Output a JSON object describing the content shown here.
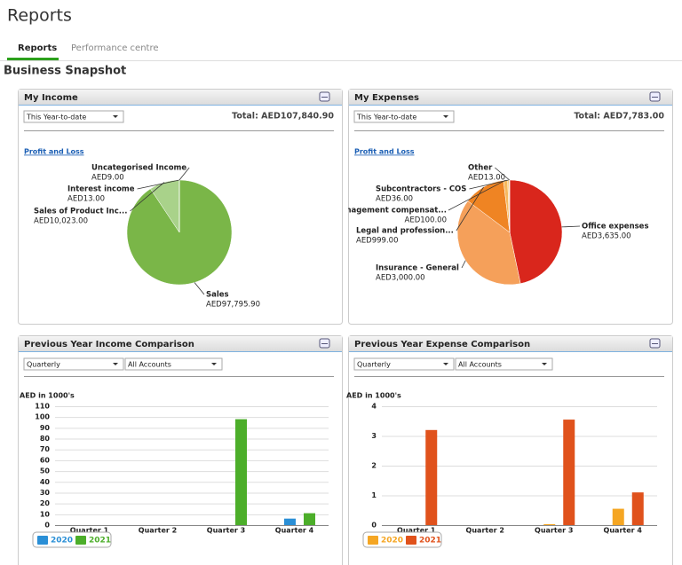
{
  "page": {
    "title": "Reports",
    "tabs": [
      "Reports",
      "Performance centre"
    ],
    "section": "Business Snapshot"
  },
  "panels": [
    {
      "title": "My Income",
      "period": "This Year-to-date",
      "total": "Total: AED107,840.90",
      "link": "Profit and Loss"
    },
    {
      "title": "My Expenses",
      "period": "This Year-to-date",
      "total": "Total: AED7,783.00",
      "link": "Profit and Loss"
    },
    {
      "title": "Previous Year Income Comparison",
      "period": "Quarterly",
      "accounts": "All Accounts"
    },
    {
      "title": "Previous Year Expense Comparison",
      "period": "Quarterly",
      "accounts": "All Accounts"
    }
  ],
  "chart_data": [
    {
      "type": "pie",
      "categories": [
        "Sales",
        "Sales of Product Inc...",
        "Interest income",
        "Uncategorised Income"
      ],
      "values": [
        97795.9,
        10023,
        13,
        9
      ],
      "value_labels": [
        "AED97,795.90",
        "AED10,023.00",
        "AED13.00",
        "AED9.00"
      ],
      "colors": [
        "#7ab648",
        "#a9d28a",
        "#c7e3b2",
        "#dff0d2"
      ]
    },
    {
      "type": "pie",
      "categories": [
        "Office expenses",
        "Insurance - General",
        "Legal and profession...",
        "Management compensat...",
        "Subcontractors - COS",
        "Other"
      ],
      "values": [
        3635,
        3000,
        999,
        100,
        36,
        13
      ],
      "value_labels": [
        "AED3,635.00",
        "AED3,000.00",
        "AED999.00",
        "AED100.00",
        "AED36.00",
        "AED13.00"
      ],
      "colors": [
        "#d9261c",
        "#f5a05a",
        "#ef8423",
        "#f7b95e",
        "#f9cf7d",
        "#fbe3a8"
      ]
    },
    {
      "type": "bar",
      "y_label": "AED in 1000's",
      "categories": [
        "Quarter 1",
        "Quarter 2",
        "Quarter 3",
        "Quarter 4"
      ],
      "series": [
        {
          "name": "2020",
          "color": "#2a8fd6",
          "values": [
            0,
            0,
            0,
            6
          ]
        },
        {
          "name": "2021",
          "color": "#4cae2a",
          "values": [
            0,
            0,
            98,
            11
          ]
        }
      ],
      "ylim": [
        0,
        110
      ],
      "yticks": [
        0,
        10,
        20,
        30,
        40,
        50,
        60,
        70,
        80,
        90,
        100,
        110
      ],
      "grid": true
    },
    {
      "type": "bar",
      "y_label": "AED in 1000's",
      "categories": [
        "Quarter 1",
        "Quarter 2",
        "Quarter 3",
        "Quarter 4"
      ],
      "series": [
        {
          "name": "2020",
          "color": "#f5a623",
          "values": [
            0,
            0,
            0.03,
            0.55
          ]
        },
        {
          "name": "2021",
          "color": "#e0521c",
          "values": [
            3.2,
            0,
            3.55,
            1.1
          ]
        }
      ],
      "ylim": [
        0,
        4
      ],
      "yticks": [
        0,
        1,
        2,
        3,
        4
      ],
      "grid": true
    }
  ]
}
